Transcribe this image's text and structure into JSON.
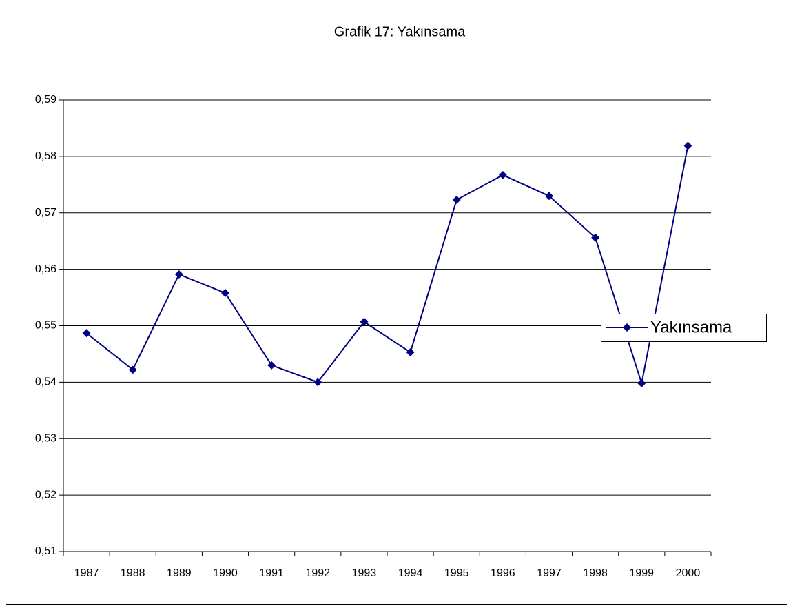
{
  "chart_data": {
    "type": "line",
    "title": "Grafik 17: Yakınsama",
    "categories": [
      "1987",
      "1988",
      "1989",
      "1990",
      "1991",
      "1992",
      "1993",
      "1994",
      "1995",
      "1996",
      "1997",
      "1998",
      "1999",
      "2000"
    ],
    "series": [
      {
        "name": "Yakınsama",
        "color": "#000080",
        "values": [
          0.5487,
          0.5422,
          0.5591,
          0.5558,
          0.543,
          0.54,
          0.5507,
          0.5453,
          0.5723,
          0.5767,
          0.573,
          0.5656,
          0.5398,
          0.5819
        ]
      }
    ],
    "ylim": [
      0.51,
      0.59
    ],
    "yticks": [
      {
        "value": 0.51,
        "label": "0,51"
      },
      {
        "value": 0.52,
        "label": "0,52"
      },
      {
        "value": 0.53,
        "label": "0,53"
      },
      {
        "value": 0.54,
        "label": "0,54"
      },
      {
        "value": 0.55,
        "label": "0,55"
      },
      {
        "value": 0.56,
        "label": "0,56"
      },
      {
        "value": 0.57,
        "label": "0,57"
      },
      {
        "value": 0.58,
        "label": "0,58"
      },
      {
        "value": 0.59,
        "label": "0,59"
      }
    ],
    "grid": true,
    "legend": "right"
  }
}
